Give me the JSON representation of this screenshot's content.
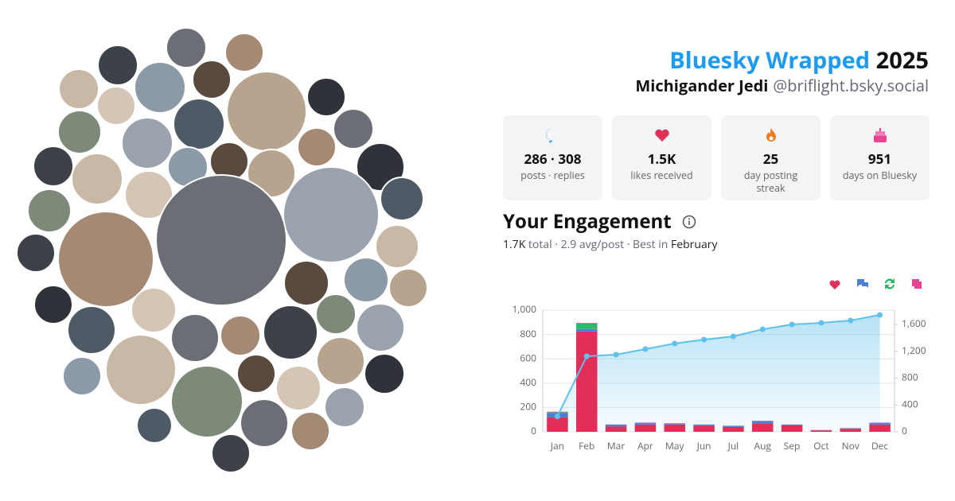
{
  "header": {
    "title": "Bluesky Wrapped",
    "year": "2025",
    "name": "Michigander Jedi",
    "handle": "@briflight.bsky.social"
  },
  "stats": [
    {
      "value": "286 · 308",
      "label": "posts · replies"
    },
    {
      "value": "1.5K",
      "label": "likes received"
    },
    {
      "value": "25",
      "label": "day posting streak"
    },
    {
      "value": "951",
      "label": "days on Bluesky"
    }
  ],
  "chart_data": {
    "type": "bar",
    "stacked": true,
    "title": "Your Engagement",
    "subtitle": {
      "total": "1.7K",
      "middle": "total · 2.9 avg/post · Best in",
      "best": "February"
    },
    "categories": [
      "Jan",
      "Feb",
      "Mar",
      "Apr",
      "May",
      "Jun",
      "Jul",
      "Aug",
      "Sep",
      "Oct",
      "Nov",
      "Dec"
    ],
    "series": [
      {
        "color": "#e0305a",
        "values": [
          120,
          825,
          45,
          60,
          60,
          50,
          40,
          70,
          55,
          12,
          25,
          60
        ]
      },
      {
        "color": "#4a7fd6",
        "values": [
          35,
          20,
          15,
          15,
          10,
          10,
          10,
          20,
          5,
          3,
          5,
          15
        ]
      },
      {
        "color": "#2eb865",
        "values": [
          5,
          45,
          0,
          0,
          0,
          0,
          0,
          0,
          0,
          0,
          0,
          0
        ]
      },
      {
        "color": "#e84393",
        "values": [
          5,
          5,
          0,
          0,
          0,
          0,
          0,
          0,
          0,
          0,
          0,
          0
        ]
      },
      {
        "type": "line",
        "axis": "y2",
        "color": "#5fc0ea",
        "values": [
          230,
          1126,
          1150,
          1232,
          1315,
          1374,
          1422,
          1528,
          1600,
          1623,
          1659,
          1742
        ]
      }
    ],
    "ylim": [
      0,
      1000
    ],
    "yticks": [
      0,
      200,
      400,
      600,
      800,
      {
        "value": 1000,
        "label": "1,000"
      }
    ],
    "y2lim": [
      0,
      1813
    ],
    "y2ticks": [
      0,
      400,
      800,
      {
        "value": 1200,
        "label": "1,200"
      },
      {
        "value": 1600,
        "label": "1,600"
      }
    ],
    "grid": true
  }
}
